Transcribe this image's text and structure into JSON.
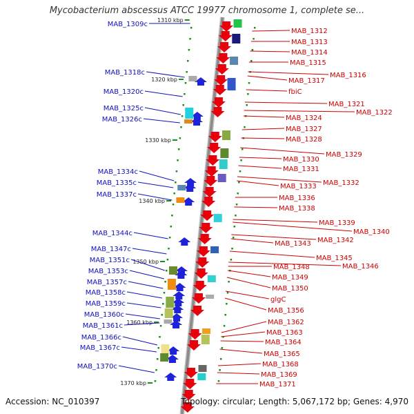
{
  "title": "Mycobacterium abscessus ATCC 19977 chromosome 1, complete se...",
  "footer": {
    "accession": "Accession: NC_010397",
    "stats": "Topology: circular; Length: 5,067,172 bp; Genes: 4,970"
  },
  "colors": {
    "forward": "#e8000b",
    "reverse": "#1e22d8",
    "label_forward": "#cc0000",
    "label_reverse": "#1010bb",
    "axis": "#8c8c8c",
    "tick": "#1a8c1a"
  },
  "ruler_labels": [
    "1310 kbp",
    "1320 kbp",
    "1330 kbp",
    "1340 kbp",
    "1350 kbp",
    "1360 kbp",
    "1370 kbp"
  ],
  "genes_forward": [
    "MAB_1312",
    "MAB_1313",
    "MAB_1314",
    "MAB_1315",
    "MAB_1316",
    "MAB_1317",
    "fbiC",
    "MAB_1321",
    "MAB_1322",
    "MAB_1324",
    "MAB_1327",
    "MAB_1328",
    "MAB_1329",
    "MAB_1330",
    "MAB_1331",
    "MAB_1332",
    "MAB_1333",
    "MAB_1336",
    "MAB_1338",
    "MAB_1339",
    "MAB_1340",
    "MAB_1342",
    "MAB_1343",
    "MAB_1345",
    "MAB_1346",
    "MAB_1348",
    "MAB_1349",
    "MAB_1350",
    "glgC",
    "MAB_1356",
    "MAB_1362",
    "MAB_1363",
    "MAB_1364",
    "MAB_1365",
    "MAB_1368",
    "MAB_1369",
    "MAB_1371"
  ],
  "genes_reverse": [
    "MAB_1309c",
    "MAB_1318c",
    "MAB_1320c",
    "MAB_1325c",
    "MAB_1326c",
    "MAB_1334c",
    "MAB_1335c",
    "MAB_1337c",
    "MAB_1344c",
    "MAB_1347c",
    "MAB_1351c",
    "MAB_1353c",
    "MAB_1357c",
    "MAB_1358c",
    "MAB_1359c",
    "MAB_1360c",
    "MAB_1361c",
    "MAB_1366c",
    "MAB_1367c",
    "MAB_1370c"
  ]
}
